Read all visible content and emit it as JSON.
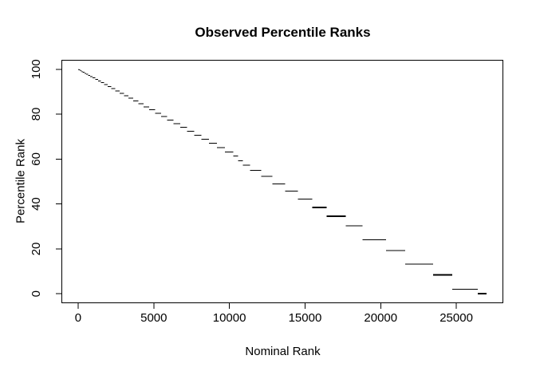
{
  "title": "Observed Percentile Ranks",
  "x_axis": {
    "label": "Nominal Rank",
    "tick_labels": [
      "0",
      "5000",
      "10000",
      "15000",
      "20000",
      "25000"
    ]
  },
  "y_axis": {
    "label": "Percentile Rank",
    "tick_labels": [
      "0",
      "20",
      "40",
      "60",
      "80",
      "100"
    ]
  },
  "colors": {
    "line": "#000000",
    "axis": "#000000",
    "text": "#000000",
    "background": "#ffffff"
  },
  "chart_data": {
    "type": "line",
    "title": "Observed Percentile Ranks",
    "xlabel": "Nominal Rank",
    "ylabel": "Percentile Rank",
    "xlim": [
      -1080,
      28080
    ],
    "ylim": [
      -4,
      104
    ],
    "x_ticks": [
      0,
      5000,
      10000,
      15000,
      20000,
      25000
    ],
    "y_ticks": [
      0,
      20,
      40,
      60,
      80,
      100
    ],
    "grid": false,
    "legend": null,
    "series": [
      {
        "name": "observed_percentile_ranks",
        "style": "horizontal-tie-group-segments",
        "segment_format": [
          "x_start_rank",
          "x_end_rank",
          "percentile_rank",
          "line_width"
        ],
        "segments": [
          [
            0,
            30,
            99.94,
            1
          ],
          [
            30,
            70,
            99.81,
            1
          ],
          [
            70,
            120,
            99.65,
            1
          ],
          [
            120,
            180,
            99.44,
            1
          ],
          [
            180,
            250,
            99.2,
            1
          ],
          [
            250,
            330,
            98.93,
            1
          ],
          [
            330,
            425,
            98.6,
            1
          ],
          [
            425,
            535,
            98.22,
            1
          ],
          [
            535,
            660,
            97.79,
            1
          ],
          [
            660,
            800,
            97.3,
            1
          ],
          [
            800,
            955,
            96.75,
            1
          ],
          [
            955,
            1125,
            96.15,
            1
          ],
          [
            1125,
            1310,
            95.49,
            1
          ],
          [
            1310,
            1510,
            94.78,
            1
          ],
          [
            1510,
            1725,
            94.01,
            1
          ],
          [
            1725,
            1955,
            93.19,
            1
          ],
          [
            1955,
            2200,
            92.31,
            1
          ],
          [
            2200,
            2460,
            91.37,
            1
          ],
          [
            2460,
            2735,
            90.38,
            1
          ],
          [
            2735,
            3025,
            89.33,
            1
          ],
          [
            3025,
            3330,
            88.23,
            1
          ],
          [
            3330,
            3650,
            87.07,
            1
          ],
          [
            3650,
            3985,
            85.86,
            1
          ],
          [
            3985,
            4335,
            84.59,
            1
          ],
          [
            4335,
            4700,
            83.27,
            1
          ],
          [
            4700,
            5080,
            81.89,
            1
          ],
          [
            5080,
            5475,
            80.45,
            1
          ],
          [
            5475,
            5885,
            78.96,
            1
          ],
          [
            5885,
            6310,
            77.42,
            1
          ],
          [
            6310,
            6750,
            75.81,
            1
          ],
          [
            6750,
            7205,
            74.16,
            1
          ],
          [
            7205,
            7675,
            72.44,
            1
          ],
          [
            7675,
            8160,
            70.68,
            1
          ],
          [
            8160,
            8660,
            68.85,
            1
          ],
          [
            8660,
            9175,
            66.97,
            1
          ],
          [
            9175,
            9705,
            65.04,
            1
          ],
          [
            9705,
            10250,
            63.06,
            1
          ],
          [
            10250,
            10580,
            61.43,
            1
          ],
          [
            10580,
            10890,
            59.3,
            1
          ],
          [
            10890,
            11370,
            57.3,
            1
          ],
          [
            11370,
            12100,
            54.9,
            1
          ],
          [
            12100,
            12840,
            52.3,
            1
          ],
          [
            12840,
            13680,
            49.0,
            1
          ],
          [
            13680,
            14520,
            45.7,
            1
          ],
          [
            14520,
            15470,
            42.2,
            1
          ],
          [
            15470,
            16420,
            38.5,
            2
          ],
          [
            16420,
            17680,
            34.5,
            2
          ],
          [
            17680,
            18790,
            30.2,
            1
          ],
          [
            18790,
            20360,
            24.1,
            1
          ],
          [
            20360,
            21630,
            19.3,
            1
          ],
          [
            21630,
            23470,
            13.2,
            1
          ],
          [
            23470,
            24730,
            8.4,
            2
          ],
          [
            24730,
            26420,
            2.0,
            1
          ],
          [
            26420,
            27000,
            0.0,
            2
          ]
        ]
      }
    ]
  }
}
